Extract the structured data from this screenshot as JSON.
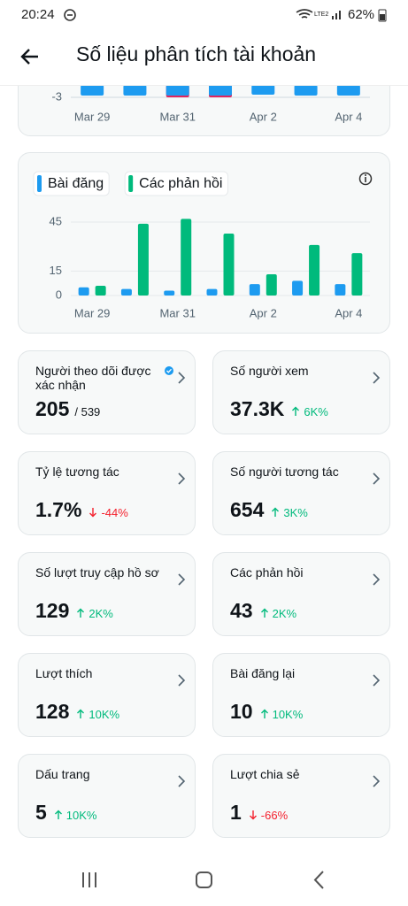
{
  "status_bar": {
    "time": "20:24",
    "network": "LTE2",
    "battery": "62%"
  },
  "header": {
    "title": "Số liệu phân tích tài khoản"
  },
  "chart_data": [
    {
      "type": "bar",
      "categories": [
        "Mar 29",
        null,
        "Mar 31",
        null,
        "Apr 2",
        null,
        "Apr 4"
      ],
      "series": [
        {
          "color": "#e0245e",
          "values": [
            null,
            null,
            -3,
            -3,
            null,
            null,
            null
          ]
        },
        {
          "color": "#1d9bf0",
          "values": [
            -2.9,
            -2.9,
            -2.9,
            -2.9,
            -2.85,
            -2.9,
            -2.9
          ]
        }
      ],
      "ylim": [
        -3.2,
        -2.3
      ],
      "yticks": [
        -3
      ]
    },
    {
      "type": "bar",
      "categories": [
        "Mar 29",
        null,
        "Mar 31",
        null,
        "Apr 2",
        null,
        "Apr 4"
      ],
      "series": [
        {
          "name": "Bài đăng",
          "color": "#1d9bf0",
          "values": [
            5,
            4,
            3,
            4,
            7,
            9,
            7
          ]
        },
        {
          "name": "Các phản hồi",
          "color": "#00ba7c",
          "values": [
            6,
            44,
            47,
            38,
            13,
            31,
            26
          ]
        }
      ],
      "ylim": [
        0,
        48
      ],
      "yticks": [
        0,
        15,
        45
      ],
      "grid": true
    }
  ],
  "cards": [
    {
      "label": "Người theo dõi được xác nhận",
      "value": "205",
      "total": "/ 539"
    },
    {
      "label": "Số người xem",
      "value": "37.3K",
      "change": "6K%",
      "trend": "up"
    },
    {
      "label": "Tỷ lệ tương tác",
      "value": "1.7%",
      "change": "-44%",
      "trend": "down"
    },
    {
      "label": "Số người tương tác",
      "value": "654",
      "change": "3K%",
      "trend": "up"
    },
    {
      "label": "Số lượt truy cập hồ sơ",
      "value": "129",
      "change": "2K%",
      "trend": "up"
    },
    {
      "label": "Các phản hồi",
      "value": "43",
      "change": "2K%",
      "trend": "up"
    },
    {
      "label": "Lượt thích",
      "value": "128",
      "change": "10K%",
      "trend": "up"
    },
    {
      "label": "Bài đăng lại",
      "value": "10",
      "change": "10K%",
      "trend": "up"
    },
    {
      "label": "Dấu trang",
      "value": "5",
      "change": "10K%",
      "trend": "up"
    },
    {
      "label": "Lượt chia sẻ",
      "value": "1",
      "change": "-66%",
      "trend": "down"
    }
  ]
}
